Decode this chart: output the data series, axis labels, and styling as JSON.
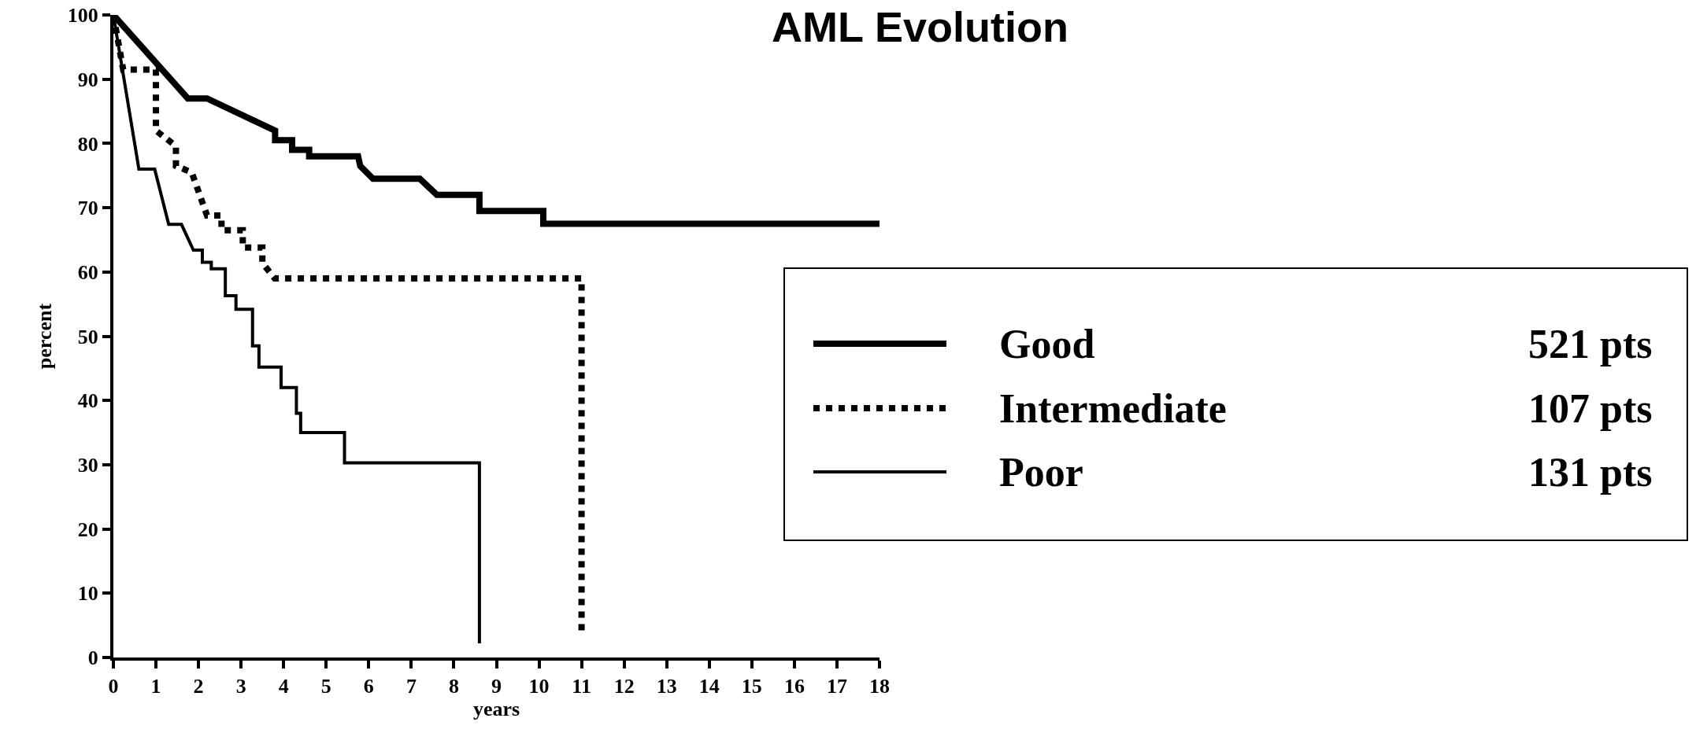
{
  "chart_data": {
    "type": "line",
    "title": "AML Evolution",
    "xlabel": "years",
    "ylabel": "percent",
    "xlim": [
      0,
      18
    ],
    "xticks": [
      0,
      1,
      2,
      3,
      4,
      5,
      6,
      7,
      8,
      9,
      10,
      11,
      12,
      13,
      14,
      15,
      16,
      17,
      18
    ],
    "ylim": [
      0,
      100
    ],
    "yticks": [
      0,
      10,
      20,
      30,
      40,
      50,
      60,
      70,
      80,
      90,
      100
    ],
    "legend": "right",
    "series": [
      {
        "name": "Good",
        "color": "#000000",
        "line_style": "solid",
        "x": [
          0,
          1.75,
          2.2,
          3.8,
          3.8,
          4.2,
          4.2,
          4.6,
          4.6,
          5.75,
          5.8,
          6.1,
          7.2,
          7.6,
          8.6,
          8.6,
          10.1,
          10.1,
          18
        ],
        "values": [
          100,
          87,
          87,
          82,
          80.5,
          80.5,
          79,
          79,
          78,
          78,
          76.5,
          74.5,
          74.5,
          72,
          72,
          69.5,
          69.5,
          67.5,
          67.5
        ]
      },
      {
        "name": "Intermediate",
        "color": "#000000",
        "line_style": "dotted",
        "x": [
          0,
          0.23,
          1.0,
          1.0,
          1.47,
          1.47,
          1.84,
          2.2,
          2.54,
          2.54,
          3.04,
          3.04,
          3.5,
          3.5,
          3.79,
          11,
          11
        ],
        "values": [
          100,
          91.5,
          91.5,
          82,
          79.6,
          76.5,
          75.5,
          68.8,
          68.8,
          66.5,
          66.5,
          63.8,
          63.8,
          61.4,
          59,
          59,
          3.5
        ]
      },
      {
        "name": "Poor",
        "color": "#000000",
        "line_style": "solid",
        "x": [
          0,
          0.6,
          0.97,
          1.3,
          1.6,
          1.88,
          2.09,
          2.09,
          2.3,
          2.3,
          2.63,
          2.63,
          2.88,
          2.88,
          3.27,
          3.27,
          3.42,
          3.42,
          3.94,
          3.94,
          4.3,
          4.3,
          4.4,
          4.4,
          5.43,
          5.43,
          8.6,
          8.6
        ],
        "values": [
          100,
          76,
          76,
          67.4,
          67.4,
          63.4,
          63.4,
          61.5,
          61.5,
          60.5,
          60.5,
          56.3,
          56.3,
          54.2,
          54.2,
          48.5,
          48.5,
          45.2,
          45.2,
          42,
          42,
          38,
          38,
          35,
          35,
          30.3,
          30.3,
          2.2
        ]
      }
    ],
    "annotations": [
      "521 pts",
      "107 pts",
      "131 pts"
    ]
  }
}
